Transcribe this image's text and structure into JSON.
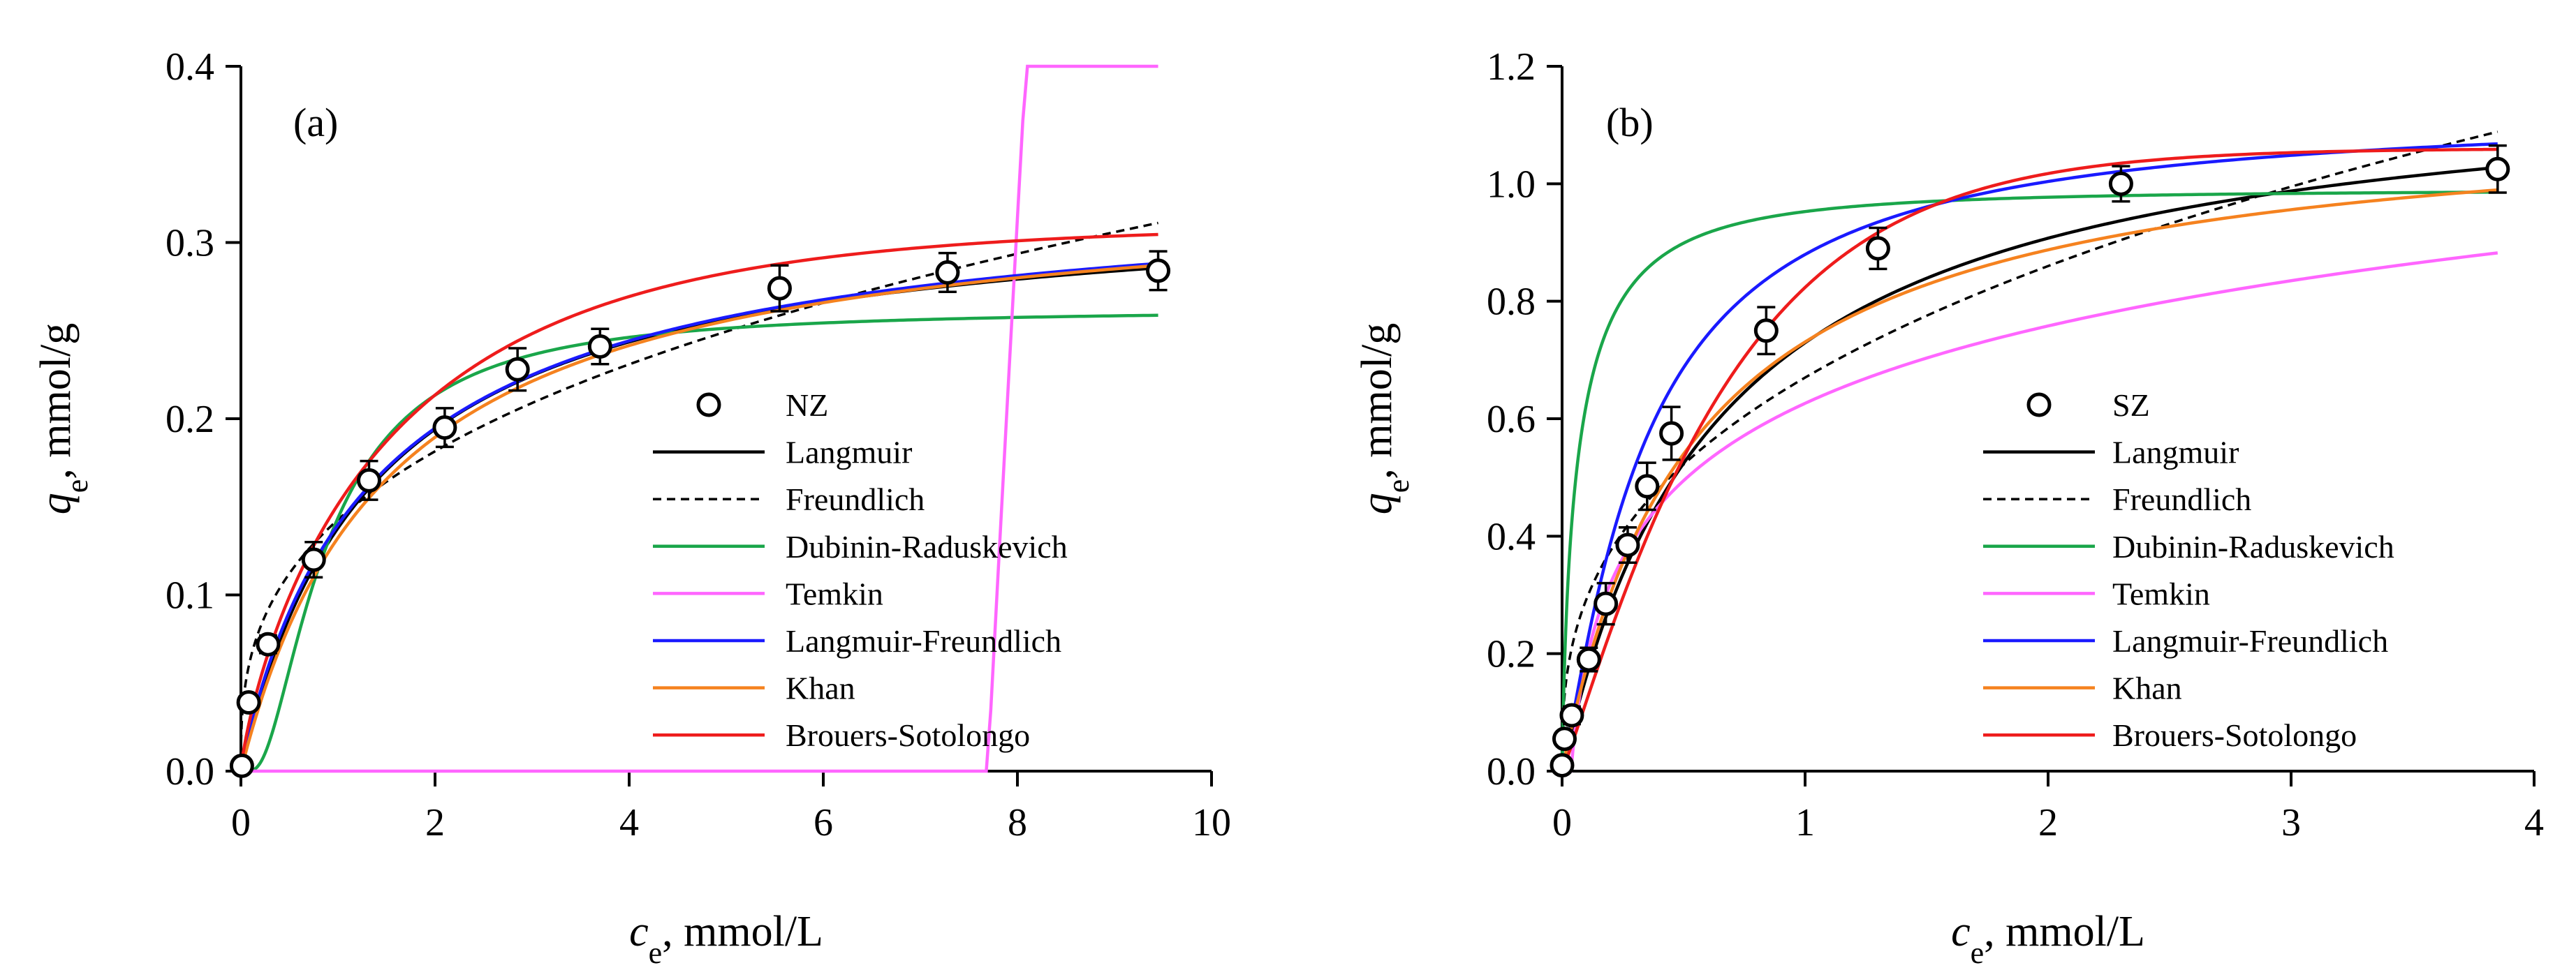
{
  "chart_data": [
    {
      "panel": "a",
      "type": "scatter",
      "panel_label": "(a)",
      "ylabel_symbol": "q",
      "ylabel_sub": "e",
      "ylabel_rest": ", mmol/g",
      "xlabel_symbol": "c",
      "xlabel_sub": "e",
      "xlabel_rest": ", mmol/L",
      "xlim": [
        0,
        10
      ],
      "ylim": [
        0,
        0.4
      ],
      "x_ticks": [
        0,
        2,
        4,
        6,
        8,
        10
      ],
      "x_tick_labels": [
        "0",
        "2",
        "4",
        "6",
        "8",
        "10"
      ],
      "y_ticks": [
        0,
        0.1,
        0.2,
        0.3,
        0.4
      ],
      "y_tick_labels": [
        "0.0",
        "0.1",
        "0.2",
        "0.3",
        "0.4"
      ],
      "legend_position": "center-right",
      "points": {
        "name": "NZ",
        "x": [
          0.01,
          0.08,
          0.28,
          0.75,
          1.32,
          2.1,
          2.85,
          3.7,
          5.55,
          7.28,
          9.45
        ],
        "y": [
          0.003,
          0.039,
          0.072,
          0.12,
          0.165,
          0.195,
          0.228,
          0.241,
          0.274,
          0.283,
          0.284
        ],
        "err": [
          0.002,
          0.004,
          0.005,
          0.01,
          0.011,
          0.011,
          0.012,
          0.01,
          0.013,
          0.011,
          0.011
        ]
      },
      "series": [
        {
          "name": "Langmuir",
          "color": "#000000",
          "dash": "solid",
          "model": "langmuir",
          "params": {
            "qm": 0.327,
            "k": 0.73
          }
        },
        {
          "name": "Freundlich",
          "color": "#000000",
          "dash": "dashed",
          "model": "freundlich",
          "params": {
            "k": 0.1427,
            "n": 0.347
          }
        },
        {
          "name": "Dubinin-Raduskevich",
          "color": "#1aa64a",
          "dash": "solid",
          "model": "dr",
          "params": {
            "qm": 0.262,
            "b": 1.25
          }
        },
        {
          "name": "Temkin",
          "color": "#ff66ff",
          "dash": "solid",
          "model": "temkin",
          "params": {
            "A": 0.13,
            "B": 8.0
          }
        },
        {
          "name": "Langmuir-Freundlich",
          "color": "#1a1aff",
          "dash": "solid",
          "model": "sips",
          "params": {
            "qm": 0.336,
            "k": 0.7,
            "n": 0.95
          }
        },
        {
          "name": "Khan",
          "color": "#f5821f",
          "dash": "solid",
          "model": "langmuir",
          "params": {
            "qm": 0.333,
            "k": 0.66
          }
        },
        {
          "name": "Brouers-Sotolongo",
          "color": "#ee1c1c",
          "dash": "solid",
          "model": "bs",
          "params": {
            "qm": 0.31,
            "k": 0.67,
            "a": 0.8
          }
        }
      ]
    },
    {
      "panel": "b",
      "type": "scatter",
      "panel_label": "(b)",
      "ylabel_symbol": "q",
      "ylabel_sub": "e",
      "ylabel_rest": ", mmol/g",
      "xlabel_symbol": "c",
      "xlabel_sub": "e",
      "xlabel_rest": ", mmol/L",
      "xlim": [
        0,
        4
      ],
      "ylim": [
        0,
        1.2
      ],
      "x_ticks": [
        0,
        1,
        2,
        3,
        4
      ],
      "x_tick_labels": [
        "0",
        "1",
        "2",
        "3",
        "4"
      ],
      "y_ticks": [
        0,
        0.2,
        0.4,
        0.6,
        0.8,
        1.0,
        1.2
      ],
      "y_tick_labels": [
        "0.0",
        "0.2",
        "0.4",
        "0.6",
        "0.8",
        "1.0",
        "1.2"
      ],
      "legend_position": "center-right",
      "points": {
        "name": "SZ",
        "x": [
          0.0,
          0.01,
          0.04,
          0.11,
          0.18,
          0.27,
          0.35,
          0.45,
          0.84,
          1.3,
          2.3,
          3.85
        ],
        "y": [
          0.01,
          0.055,
          0.095,
          0.19,
          0.285,
          0.385,
          0.485,
          0.575,
          0.75,
          0.89,
          1.0,
          1.025
        ],
        "err": [
          0.005,
          0.01,
          0.015,
          0.02,
          0.035,
          0.03,
          0.04,
          0.045,
          0.04,
          0.035,
          0.03,
          0.04
        ]
      },
      "series": [
        {
          "name": "Langmuir",
          "color": "#000000",
          "dash": "solid",
          "model": "langmuir",
          "params": {
            "qm": 1.2,
            "k": 1.55
          }
        },
        {
          "name": "Freundlich",
          "color": "#000000",
          "dash": "dashed",
          "model": "freundlich",
          "params": {
            "k": 0.67,
            "n": 0.36
          }
        },
        {
          "name": "Dubinin-Raduskevich",
          "color": "#1aa64a",
          "dash": "solid",
          "model": "dr",
          "params": {
            "qm": 0.99,
            "b": 0.08
          }
        },
        {
          "name": "Temkin",
          "color": "#ff66ff",
          "dash": "solid",
          "model": "temkin",
          "params": {
            "A": 27.0,
            "B": 0.19
          }
        },
        {
          "name": "Langmuir-Freundlich",
          "color": "#1a1aff",
          "dash": "solid",
          "model": "sips",
          "params": {
            "qm": 1.13,
            "k": 2.9,
            "n": 1.18
          }
        },
        {
          "name": "Khan",
          "color": "#f5821f",
          "dash": "solid",
          "model": "langmuir",
          "params": {
            "qm": 1.13,
            "k": 1.83
          }
        },
        {
          "name": "Brouers-Sotolongo",
          "color": "#ee1c1c",
          "dash": "solid",
          "model": "bs",
          "params": {
            "qm": 1.06,
            "k": 1.5,
            "a": 1.1
          }
        }
      ]
    }
  ]
}
